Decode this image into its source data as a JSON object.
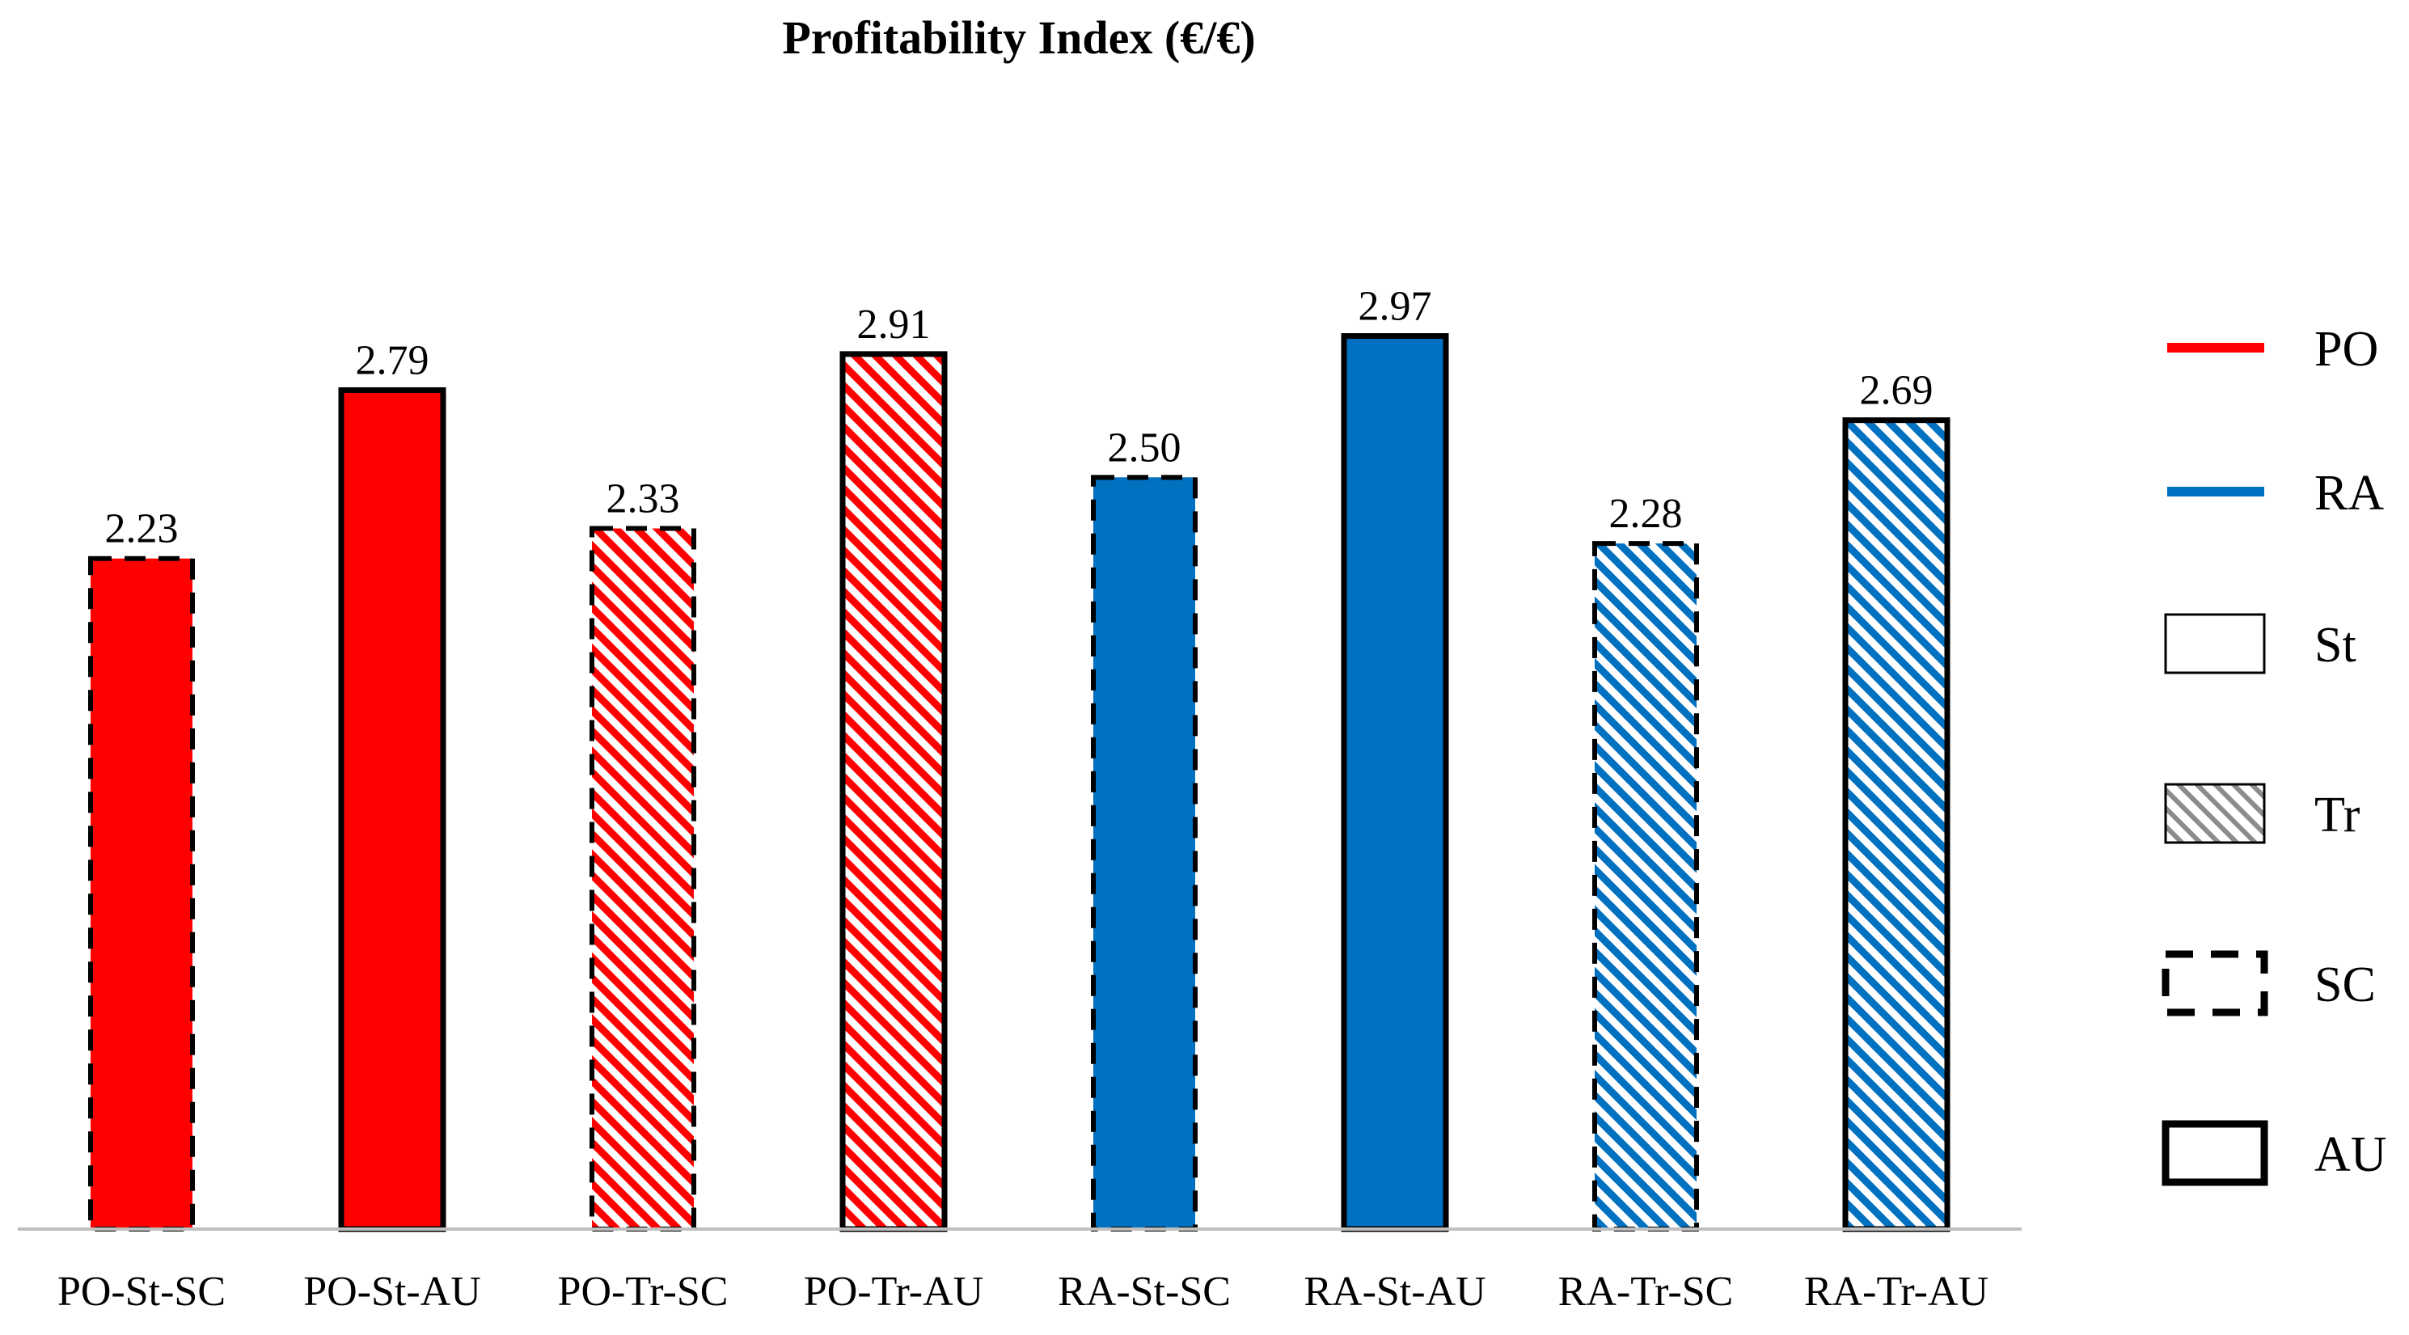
{
  "chart_data": {
    "type": "bar",
    "title": "Profitability Index (€/€)",
    "xlabel": "",
    "ylabel": "",
    "ylim": [
      0,
      3.2
    ],
    "grid": false,
    "categories": [
      "PO-St-SC",
      "PO-St-AU",
      "PO-Tr-SC",
      "PO-Tr-AU",
      "RA-St-SC",
      "RA-St-AU",
      "RA-Tr-SC",
      "RA-Tr-AU"
    ],
    "values": [
      2.23,
      2.79,
      2.33,
      2.91,
      2.5,
      2.97,
      2.28,
      2.69
    ],
    "data_labels": [
      "2.23",
      "2.79",
      "2.33",
      "2.91",
      "2.50",
      "2.97",
      "2.28",
      "2.69"
    ],
    "bar_styles": [
      {
        "color": "PO",
        "fill": "St",
        "border": "SC"
      },
      {
        "color": "PO",
        "fill": "St",
        "border": "AU"
      },
      {
        "color": "PO",
        "fill": "Tr",
        "border": "SC"
      },
      {
        "color": "PO",
        "fill": "Tr",
        "border": "AU"
      },
      {
        "color": "RA",
        "fill": "St",
        "border": "SC"
      },
      {
        "color": "RA",
        "fill": "St",
        "border": "AU"
      },
      {
        "color": "RA",
        "fill": "Tr",
        "border": "SC"
      },
      {
        "color": "RA",
        "fill": "Tr",
        "border": "AU"
      }
    ],
    "colors": {
      "PO": "#ff0000",
      "RA": "#0070c0",
      "axis": "#bfbfbf",
      "outline": "#000000"
    },
    "legend": {
      "placement": "right",
      "items": [
        {
          "key": "PO",
          "label": "PO",
          "kind": "line"
        },
        {
          "key": "RA",
          "label": "RA",
          "kind": "line"
        },
        {
          "key": "St",
          "label": "St",
          "kind": "solid-box"
        },
        {
          "key": "Tr",
          "label": "Tr",
          "kind": "hatched-box"
        },
        {
          "key": "SC",
          "label": "SC",
          "kind": "dashed-box"
        },
        {
          "key": "AU",
          "label": "AU",
          "kind": "thick-box"
        }
      ]
    }
  }
}
